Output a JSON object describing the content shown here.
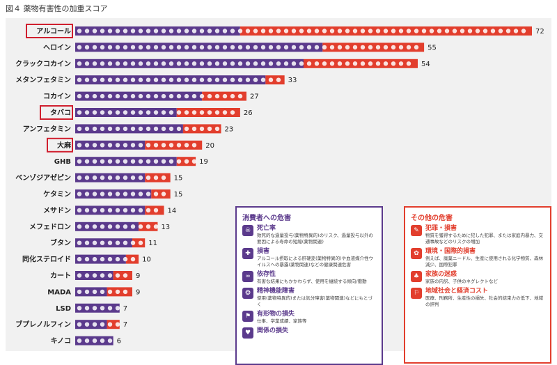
{
  "figure_title": "図４ 薬物有害性の加重スコア",
  "colors": {
    "consumer_harm": "#5b3a8c",
    "other_harm": "#e23e2d",
    "highlight": "#d01f2e"
  },
  "chart_data": {
    "type": "bar",
    "orientation": "horizontal",
    "stacked": true,
    "categories": [
      "アルコール",
      "ヘロイン",
      "クラックコカイン",
      "メタンフェタミン",
      "コカイン",
      "タバコ",
      "アンフェタミン",
      "大麻",
      "GHB",
      "ベンゾジアゼピン",
      "ケタミン",
      "メサドン",
      "メフェドロン",
      "ブタン",
      "同化ステロイド",
      "カート",
      "MADA",
      "LSD",
      "ブプレノルフィン",
      "キノコ"
    ],
    "totals": [
      72,
      55,
      54,
      33,
      27,
      26,
      23,
      20,
      19,
      15,
      15,
      14,
      13,
      11,
      10,
      9,
      9,
      7,
      7,
      6
    ],
    "series": [
      {
        "name": "消費者への危害",
        "values": [
          26,
          39,
          36,
          30,
          20,
          16,
          17,
          11,
          16,
          11,
          12,
          11,
          10,
          9,
          8,
          6,
          5,
          7,
          5,
          6
        ]
      },
      {
        "name": "その他の危害",
        "values": [
          46,
          16,
          18,
          3,
          7,
          10,
          6,
          9,
          3,
          4,
          3,
          3,
          3,
          2,
          2,
          3,
          4,
          0,
          2,
          0
        ]
      }
    ],
    "highlighted": [
      "アルコール",
      "タバコ",
      "大麻"
    ],
    "xlim": [
      0,
      72
    ]
  },
  "legend_consumer": {
    "title": "消費者への危害",
    "items": [
      {
        "icon": "skull-icon",
        "name": "死亡率",
        "desc": "致死的な過量投与(薬物特異的)のリスク、過量投与以外の要因による寿命の短縮(薬物関連)"
      },
      {
        "icon": "brain-icon",
        "name": "損害",
        "desc": "アルコール摂取による肝硬変(薬物特異的)や血液媒介性ウイルスへの暴露(薬物関連)などの健康関連危害"
      },
      {
        "icon": "chain-icon",
        "name": "依存性",
        "desc": "有害な結果にもかかわらず、使用を継続する傾向/衝動"
      },
      {
        "icon": "mind-icon",
        "name": "精神機能障害",
        "desc": "使用(薬物特異的)または気分障害(薬物関連)などにもとづく"
      },
      {
        "icon": "loss-icon",
        "name": "有形物の損失",
        "desc": "仕事、学業成績、家族等"
      },
      {
        "icon": "broken-heart-icon",
        "name": "関係の損失",
        "desc": ""
      }
    ]
  },
  "legend_others": {
    "title": "その他の危害",
    "items": [
      {
        "icon": "knife-icon",
        "name": "犯罪・損害",
        "desc": "物質を獲得するために犯した犯罪、または家庭内暴力、交通事故などのリスクの増加"
      },
      {
        "icon": "environment-icon",
        "name": "環境・国際的損害",
        "desc": "例えば、廃棄ニードル、生産に使用される化学物質、森林減少、国際犯罪"
      },
      {
        "icon": "family-icon",
        "name": "家族の迷惑",
        "desc": "家族の内訳、子供のネグレクトなど"
      },
      {
        "icon": "community-icon",
        "name": "地域社会と経済コスト",
        "desc": "医療、刑務所、生産性の損失、社会的結束力の低下、地域の評判"
      }
    ]
  }
}
